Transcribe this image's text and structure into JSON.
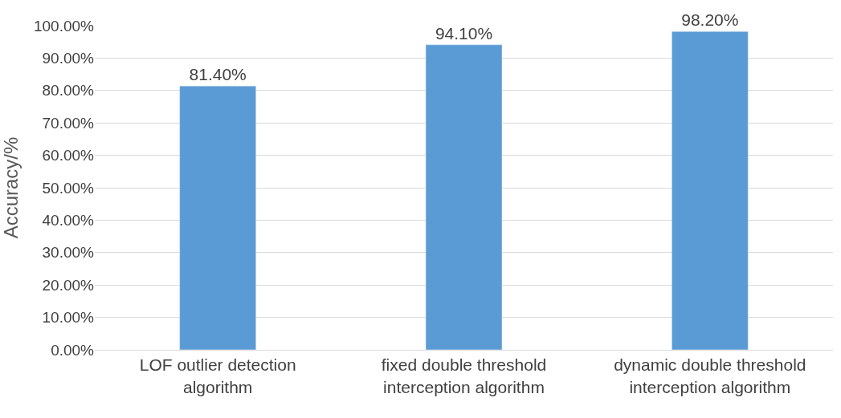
{
  "chart_data": {
    "type": "bar",
    "categories": [
      "LOF outlier detection\nalgorithm",
      "fixed double threshold\ninterception algorithm",
      "dynamic double threshold\ninterception algorithm"
    ],
    "values": [
      81.4,
      94.1,
      98.2
    ],
    "value_labels": [
      "81.40%",
      "94.10%",
      "98.20%"
    ],
    "color": "#5b9bd5",
    "ylabel": "Accuracy/%",
    "ylim": [
      0,
      100
    ],
    "yticks": [
      {
        "value": 0,
        "label": "0.00%"
      },
      {
        "value": 10,
        "label": "10.00%"
      },
      {
        "value": 20,
        "label": "20.00%"
      },
      {
        "value": 30,
        "label": "30.00%"
      },
      {
        "value": 40,
        "label": "40.00%"
      },
      {
        "value": 50,
        "label": "50.00%"
      },
      {
        "value": 60,
        "label": "60.00%"
      },
      {
        "value": 70,
        "label": "70.00%"
      },
      {
        "value": 80,
        "label": "80.00%"
      },
      {
        "value": 90,
        "label": "90.00%"
      },
      {
        "value": 100,
        "label": "100.00%"
      }
    ],
    "grid": "y"
  }
}
